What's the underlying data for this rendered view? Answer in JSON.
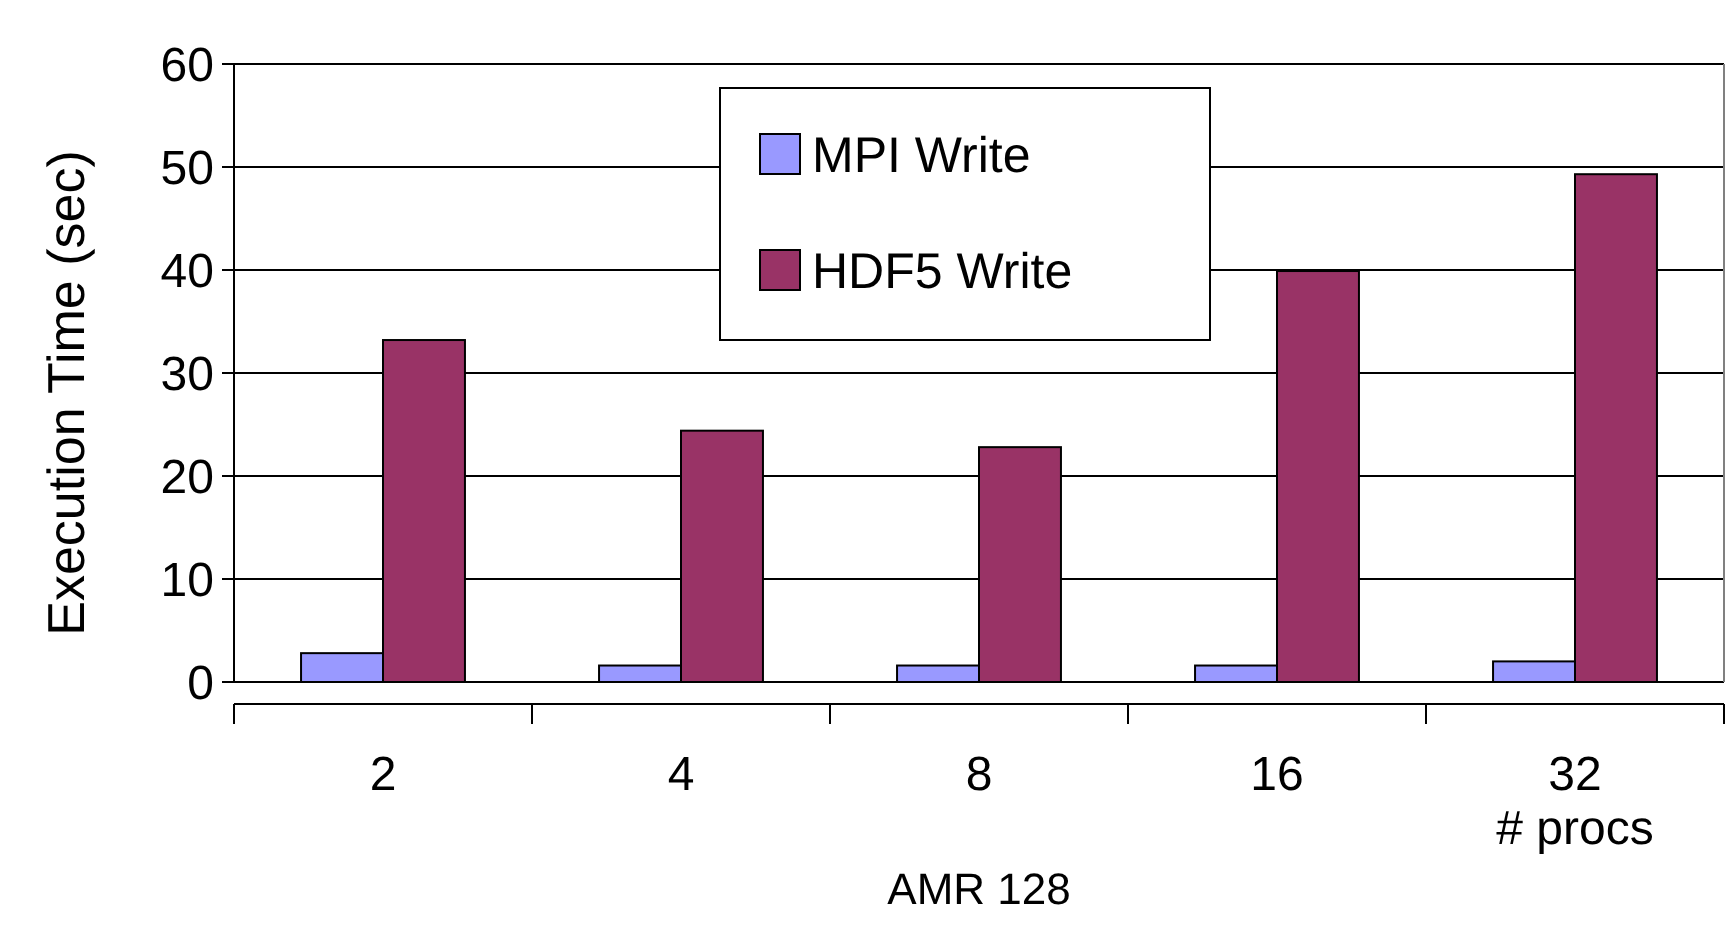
{
  "chart_data": {
    "type": "bar",
    "categories": [
      "2",
      "4",
      "8",
      "16",
      "32"
    ],
    "series": [
      {
        "name": "MPI Write",
        "color": "#9999ff",
        "values": [
          2.8,
          1.6,
          1.6,
          1.6,
          2.0
        ]
      },
      {
        "name": "HDF5 Write",
        "color": "#993366",
        "values": [
          33.2,
          24.4,
          22.8,
          39.9,
          49.3
        ]
      }
    ],
    "ylabel": "Execution Time (sec)",
    "xlabel": "AMR 128",
    "annotations": [
      "# procs"
    ],
    "ylim": [
      0,
      60
    ],
    "yticks": [
      0,
      10,
      20,
      30,
      40,
      50,
      60
    ],
    "grid": "y",
    "legend": "top"
  }
}
